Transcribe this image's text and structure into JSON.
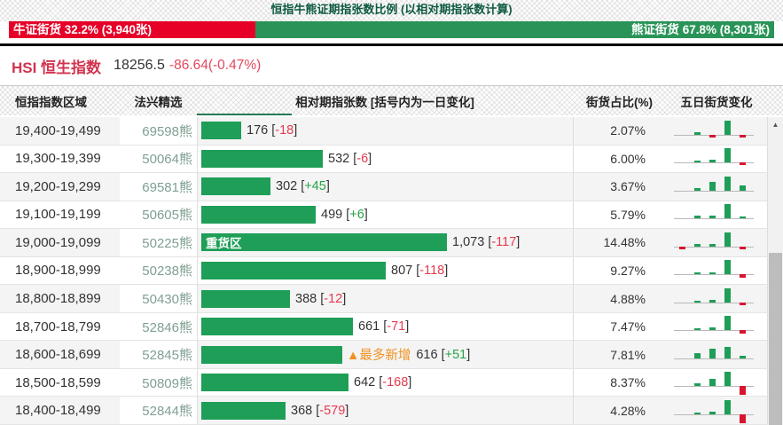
{
  "title": "恒指牛熊证期指张数比例 (以相对期指张数计算)",
  "ratio_bar": {
    "bull_label": "牛证街货 32.2% (3,940张)",
    "bull_pct": 32.2,
    "bear_label": "熊证街货 67.8% (8,301张)",
    "bear_pct": 67.8
  },
  "index_quote": {
    "symbol_name": "HSI 恒生指数",
    "price": "18256.5",
    "change": "-86.64(-0.47%)"
  },
  "table": {
    "headers": {
      "range": "恒指指数区域",
      "featured": "法兴精选",
      "volume": "相对期指张数 [括号内为一日变化]",
      "oi_pct": "街货占比(%)",
      "five_day": "五日街货变化"
    },
    "max_value": 1073,
    "rows": [
      {
        "range": "19,400-19,499",
        "code": "69598熊",
        "value": 176,
        "value_label": "176",
        "change": "-18",
        "pct": "2.07%",
        "spark": [
          0,
          2,
          -1,
          10,
          -1
        ]
      },
      {
        "range": "19,300-19,399",
        "code": "50064熊",
        "value": 532,
        "value_label": "532",
        "change": "-6",
        "pct": "6.00%",
        "spark": [
          0,
          1,
          2,
          10,
          -1
        ]
      },
      {
        "range": "19,200-19,299",
        "code": "69581熊",
        "value": 302,
        "value_label": "302",
        "change": "+45",
        "pct": "3.67%",
        "spark": [
          0,
          2,
          6,
          10,
          4
        ]
      },
      {
        "range": "19,100-19,199",
        "code": "50605熊",
        "value": 499,
        "value_label": "499",
        "change": "+6",
        "pct": "5.79%",
        "spark": [
          0,
          2,
          2,
          10,
          1
        ]
      },
      {
        "range": "19,000-19,099",
        "code": "50225熊",
        "value": 1073,
        "value_label": "1,073",
        "change": "-117",
        "pct": "14.48%",
        "bar_tag": "重货区",
        "spark": [
          -1,
          2,
          2,
          10,
          -1
        ]
      },
      {
        "range": "18,900-18,999",
        "code": "50238熊",
        "value": 807,
        "value_label": "807",
        "change": "-118",
        "pct": "9.27%",
        "spark": [
          0,
          1,
          1,
          10,
          -2
        ]
      },
      {
        "range": "18,800-18,899",
        "code": "50430熊",
        "value": 388,
        "value_label": "388",
        "change": "-12",
        "pct": "4.88%",
        "spark": [
          0,
          1,
          2,
          10,
          -1
        ]
      },
      {
        "range": "18,700-18,799",
        "code": "52846熊",
        "value": 661,
        "value_label": "661",
        "change": "-71",
        "pct": "7.47%",
        "spark": [
          0,
          1,
          2,
          10,
          -2
        ]
      },
      {
        "range": "18,600-18,699",
        "code": "52845熊",
        "value": 616,
        "value_label": "616",
        "change": "+51",
        "pct": "7.81%",
        "pre_tag": "▲最多新增",
        "spark": [
          0,
          4,
          7,
          8,
          2
        ]
      },
      {
        "range": "18,500-18,599",
        "code": "50809熊",
        "value": 642,
        "value_label": "642",
        "change": "-168",
        "pct": "8.37%",
        "spark": [
          0,
          2,
          5,
          10,
          -5
        ]
      },
      {
        "range": "18,400-18,499",
        "code": "52844熊",
        "value": 368,
        "value_label": "368",
        "change": "-579",
        "pct": "4.28%",
        "spark": [
          0,
          1,
          2,
          10,
          -5
        ]
      }
    ]
  },
  "scrollbar": {
    "up_arrow": "▲"
  },
  "colors": {
    "bull_red": "#e60028",
    "bear_green": "#2a9458",
    "bar_green": "#1e9e57",
    "change_up_green": "#27a345",
    "change_down_red": "#e8394f",
    "tag_orange": "#f0901e",
    "code_green": "#7fa092",
    "title_green": "#0d5a40",
    "spark_down_red": "#d8142e"
  }
}
